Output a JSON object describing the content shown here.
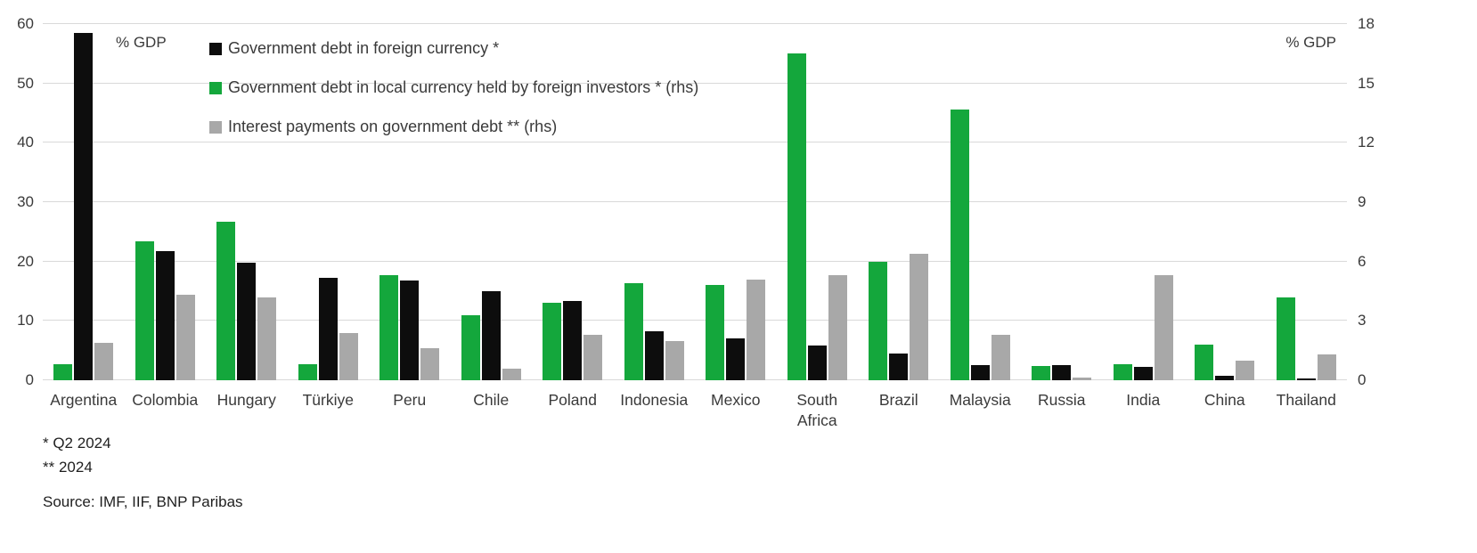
{
  "chart_data": {
    "type": "bar",
    "title": "",
    "categories": [
      "Argentina",
      "Colombia",
      "Hungary",
      "Türkiye",
      "Peru",
      "Chile",
      "Poland",
      "Indonesia",
      "Mexico",
      "South Africa",
      "Brazil",
      "Malaysia",
      "Russia",
      "India",
      "China",
      "Thailand"
    ],
    "series": [
      {
        "name": "Government debt in local currency held by foreign investors * (rhs)",
        "axis": "right",
        "color": "#14a73c",
        "values": [
          0.8,
          7.0,
          8.0,
          0.8,
          5.3,
          3.3,
          3.9,
          4.9,
          4.8,
          16.5,
          6.0,
          13.7,
          0.7,
          0.8,
          1.8,
          4.2
        ]
      },
      {
        "name": "Government debt in foreign currency *",
        "axis": "left",
        "color": "#0d0d0d",
        "values": [
          58.5,
          21.8,
          19.8,
          17.2,
          16.8,
          15.0,
          13.4,
          8.2,
          7.0,
          5.8,
          4.5,
          2.6,
          2.6,
          2.2,
          0.8,
          0.3
        ]
      },
      {
        "name": "Interest payments on government debt ** (rhs)",
        "axis": "right",
        "color": "#a8a8a8",
        "values": [
          1.9,
          4.3,
          4.2,
          2.4,
          1.6,
          0.6,
          2.3,
          2.0,
          5.1,
          5.3,
          6.4,
          2.3,
          0.15,
          5.3,
          1.0,
          1.3
        ]
      }
    ],
    "legend_order": [
      1,
      0,
      2
    ],
    "left_axis": {
      "label": "% GDP",
      "max": 60,
      "ticks": [
        0,
        10,
        20,
        30,
        40,
        50,
        60
      ]
    },
    "right_axis": {
      "label": "% GDP",
      "max": 18,
      "ticks": [
        0,
        3,
        6,
        9,
        12,
        15,
        18
      ]
    },
    "grid": true,
    "legend_position": "top-left-inside"
  },
  "footnotes": [
    "* Q2 2024",
    "** 2024"
  ],
  "source": "Source: IMF, IIF, BNP Paribas"
}
